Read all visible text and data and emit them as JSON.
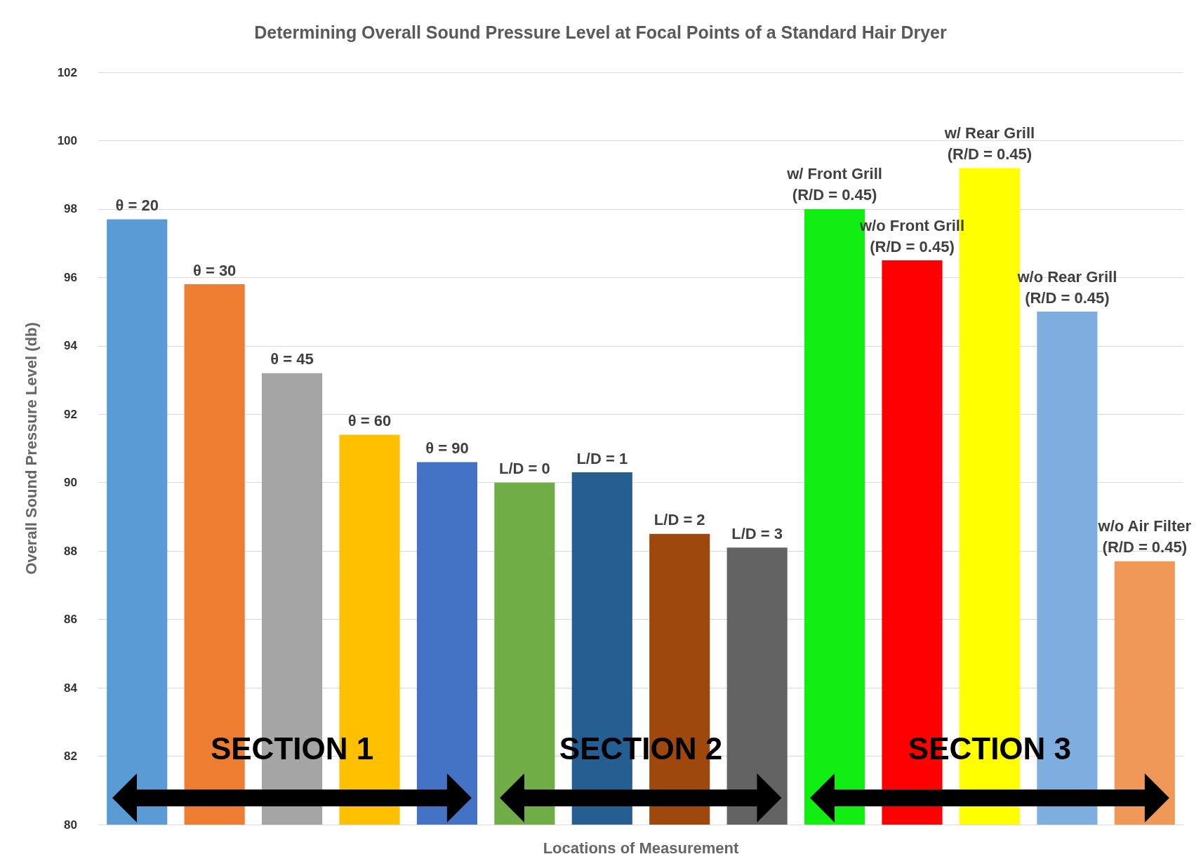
{
  "chart_data": {
    "type": "bar",
    "title": "Determining Overall Sound Pressure Level at Focal Points of a Standard Hair Dryer",
    "xlabel": "Locations of Measurement",
    "ylabel": "Overall Sound Pressure Level (db)",
    "categories": [
      "θ = 20",
      "θ = 30",
      "θ = 45",
      "θ = 60",
      "θ = 90",
      "L/D = 0",
      "L/D = 1",
      "L/D = 2",
      "L/D = 3",
      "w/ Front Grill\n(R/D = 0.45)",
      "w/o Front Grill\n(R/D = 0.45)",
      "w/ Rear Grill\n(R/D = 0.45)",
      "w/o Rear Grill\n(R/D = 0.45)",
      "w/o Air Filter\n(R/D = 0.45)"
    ],
    "values": [
      97.7,
      95.8,
      93.2,
      91.4,
      90.6,
      90.0,
      90.3,
      88.5,
      88.1,
      98.0,
      96.5,
      99.2,
      95.0,
      87.7
    ],
    "colors": [
      "#5b9bd5",
      "#ed7d31",
      "#a5a5a5",
      "#ffc000",
      "#4472c4",
      "#70ad47",
      "#255e91",
      "#9e480e",
      "#636363",
      "#11ee11",
      "#ff0000",
      "#ffff00",
      "#7eaedf",
      "#f09858"
    ],
    "ylim": [
      80,
      102
    ],
    "yticks": [
      80,
      82,
      84,
      86,
      88,
      90,
      92,
      94,
      96,
      98,
      100,
      102
    ],
    "grid": "y",
    "tick_labels": "y",
    "annotations": [
      "SECTION 1",
      "SECTION 2",
      "SECTION 3"
    ]
  }
}
